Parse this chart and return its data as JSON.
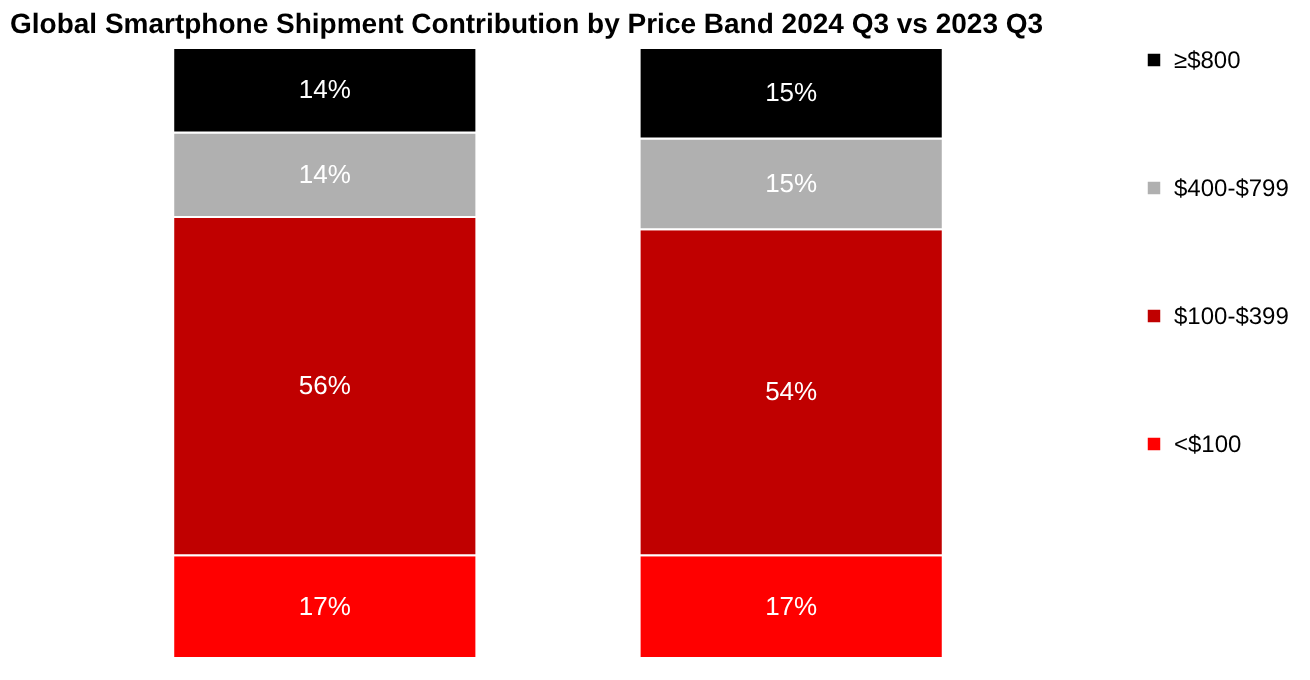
{
  "chart_data": {
    "type": "bar",
    "title": "Global Smartphone Shipment Contribution by Price Band 2024 Q3 vs 2023 Q3",
    "categories": [
      null,
      null
    ],
    "stacked": true,
    "legend": "right",
    "grid": false,
    "series": [
      {
        "name": "<$100",
        "color": "#ff0000",
        "values": [
          17,
          17
        ],
        "value_labels": [
          "17%",
          "17%"
        ]
      },
      {
        "name": "$100-$399",
        "color": "#c00000",
        "values": [
          56,
          54
        ],
        "value_labels": [
          "56%",
          "54%"
        ]
      },
      {
        "name": "$400-$799",
        "color": "#b0b0b0",
        "values": [
          14,
          15
        ],
        "value_labels": [
          "14%",
          "15%"
        ]
      },
      {
        "name": "≥$800",
        "color": "#000000",
        "values": [
          14,
          15
        ],
        "value_labels": [
          "14%",
          "15%"
        ]
      }
    ]
  }
}
